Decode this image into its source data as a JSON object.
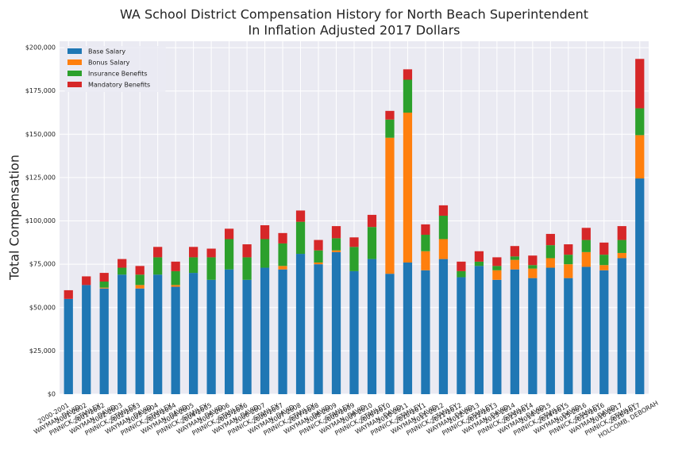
{
  "chart_data": {
    "type": "stacked_bar",
    "title": "WA School District Compensation History for North Beach Superintendent",
    "subtitle": "In Inflation Adjusted 2017 Dollars",
    "y_label": "Total Compensation",
    "categories": [
      [
        "2000-2001",
        "WAYMAN, DAVID"
      ],
      [
        "2001-2002",
        "PINNICK, STANLEY"
      ],
      [
        "2001-2002",
        "WAYMAN, DAVID"
      ],
      [
        "2002-2003",
        "PINNICK, STANLEY"
      ],
      [
        "2002-2003",
        "WAYMAN, DAVID"
      ],
      [
        "2003-2004",
        "PINNICK, STANLEY"
      ],
      [
        "2003-2004",
        "WAYMAN, DAVID"
      ],
      [
        "2004-2005",
        "PINNICK, STANLEY"
      ],
      [
        "2004-2005",
        "WAYMAN, DAVID"
      ],
      [
        "2005-2006",
        "PINNICK, STANLEY"
      ],
      [
        "2005-2006",
        "WAYMAN, DAVID"
      ],
      [
        "2006-2007",
        "PINNICK, STANLEY"
      ],
      [
        "2006-2007",
        "WAYMAN, DAVID"
      ],
      [
        "2007-2008",
        "PINNICK, STANLEY"
      ],
      [
        "2007-2008",
        "WAYMAN, DAVID"
      ],
      [
        "2008-2009",
        "PINNICK, STANLEY"
      ],
      [
        "2008-2009",
        "WAYMAN, DAVID"
      ],
      [
        "2009-2010",
        "PINNICK, STANLEY"
      ],
      [
        "2009-2010",
        "WAYMAN, DAVID"
      ],
      [
        "2010-2011",
        "PINNICK, STANLEY"
      ],
      [
        "2010-2011",
        "WAYMAN, DAVID"
      ],
      [
        "2011-2012",
        "PINNICK, STANLEY"
      ],
      [
        "2011-2012",
        "WAYMAN, DAVID"
      ],
      [
        "2012-2013",
        "PINNICK, STANLEY"
      ],
      [
        "2012-2013",
        "WAYMAN, DAVID"
      ],
      [
        "2013-2014",
        "PINNICK, STANLEY"
      ],
      [
        "2013-2014",
        "WAYMAN, DAVID"
      ],
      [
        "2014-2015",
        "PINNICK, STANLEY"
      ],
      [
        "2014-2015",
        "WAYMAN, DAVID"
      ],
      [
        "2015-2016",
        "PINNICK, STANLEY"
      ],
      [
        "2015-2016",
        "WAYMAN, DAVID"
      ],
      [
        "2016-2017",
        "PINNICK, STANLEY"
      ],
      [
        "2016-2017",
        "HOLCOMB, DEBORAH"
      ]
    ],
    "series": [
      {
        "name": "Base Salary",
        "color": "#1f77b4",
        "values": [
          55000,
          63000,
          61000,
          69000,
          61000,
          69000,
          62000,
          70000,
          66000,
          72000,
          66000,
          73000,
          72000,
          81000,
          75000,
          82000,
          71000,
          78000,
          69500,
          76000,
          71500,
          78000,
          67500,
          74000,
          66000,
          72000,
          67000,
          73000,
          67000,
          73500,
          71500,
          78500,
          124500
        ]
      },
      {
        "name": "Bonus Salary",
        "color": "#ff7f0e",
        "values": [
          0,
          0,
          500,
          0,
          2000,
          0,
          1000,
          0,
          0,
          0,
          0,
          0,
          2000,
          0,
          1000,
          1000,
          0,
          0,
          78500,
          86500,
          11000,
          11500,
          0,
          0,
          5500,
          5500,
          5500,
          5500,
          8000,
          8500,
          3000,
          3000,
          25000
        ]
      },
      {
        "name": "Insurance Benefits",
        "color": "#2ca02c",
        "values": [
          0,
          0,
          3500,
          4000,
          6000,
          10000,
          8000,
          9000,
          13000,
          17500,
          13000,
          16500,
          13000,
          18500,
          7000,
          7000,
          14000,
          18500,
          10500,
          19000,
          9500,
          13500,
          3500,
          2500,
          2500,
          2000,
          2000,
          7500,
          5500,
          7000,
          6000,
          7500,
          15500
        ]
      },
      {
        "name": "Mandatory Benefits",
        "color": "#d62728",
        "values": [
          5000,
          5000,
          5000,
          5000,
          5000,
          6000,
          5500,
          6000,
          5000,
          6000,
          7500,
          8000,
          6000,
          6500,
          6000,
          7000,
          5500,
          7000,
          5000,
          6000,
          6000,
          6000,
          5500,
          6000,
          5000,
          6000,
          5500,
          6500,
          6000,
          7000,
          7000,
          8000,
          28500
        ]
      }
    ],
    "ylim": [
      0,
      203700
    ],
    "yticks": [
      {
        "value": 0,
        "label": "$0"
      },
      {
        "value": 25000,
        "label": "$25,000"
      },
      {
        "value": 50000,
        "label": "$50,000"
      },
      {
        "value": 75000,
        "label": "$75,000"
      },
      {
        "value": 100000,
        "label": "$100,000"
      },
      {
        "value": 125000,
        "label": "$125,000"
      },
      {
        "value": 150000,
        "label": "$150,000"
      },
      {
        "value": 175000,
        "label": "$175,000"
      },
      {
        "value": 200000,
        "label": "$200,000"
      }
    ],
    "grid": true,
    "legend": "upper left"
  }
}
